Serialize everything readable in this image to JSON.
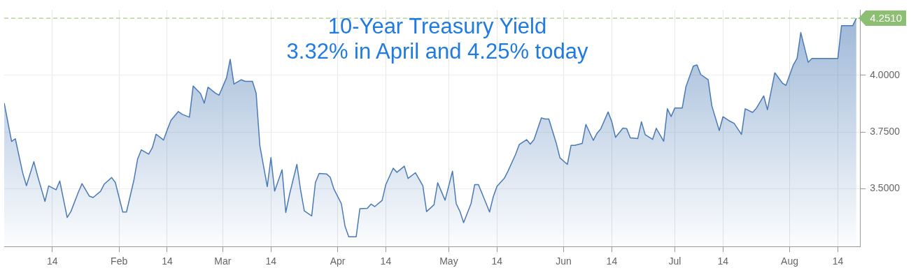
{
  "chart_data": {
    "type": "area",
    "title": "10-Year Treasury Yield",
    "subtitle": "3.32% in April and 4.25% today",
    "x": [
      "--01-01",
      "--01-03",
      "--01-04",
      "--01-06",
      "--01-07",
      "--01-09",
      "--01-10",
      "--01-12",
      "--01-13",
      "--01-15",
      "--01-16",
      "--01-18",
      "--01-19",
      "--01-21",
      "--01-22",
      "--01-24",
      "--01-25",
      "--01-27",
      "--01-28",
      "--01-30",
      "--01-31",
      "--02-02",
      "--02-03",
      "--02-05",
      "--02-06",
      "--02-07",
      "--02-09",
      "--02-10",
      "--02-11",
      "--02-13",
      "--02-14",
      "--02-15",
      "--02-17",
      "--02-18",
      "--02-20",
      "--02-21",
      "--02-23",
      "--02-24",
      "--02-25",
      "--02-27",
      "--02-28",
      "--03-02",
      "--03-03",
      "--03-04",
      "--03-06",
      "--03-07",
      "--03-09",
      "--03-10",
      "--03-11",
      "--03-13",
      "--03-14",
      "--03-15",
      "--03-17",
      "--03-18",
      "--03-19",
      "--03-21",
      "--03-22",
      "--03-23",
      "--03-25",
      "--03-26",
      "--03-27",
      "--03-29",
      "--03-30",
      "--03-31",
      "--04-02",
      "--04-03",
      "--04-04",
      "--04-06",
      "--04-07",
      "--04-09",
      "--04-10",
      "--04-11",
      "--04-13",
      "--04-14",
      "--04-16",
      "--04-17",
      "--04-19",
      "--04-20",
      "--04-22",
      "--04-24",
      "--04-25",
      "--04-27",
      "--04-28",
      "--04-30",
      "--05-02",
      "--05-03",
      "--05-04",
      "--05-05",
      "--05-07",
      "--05-08",
      "--05-09",
      "--05-11",
      "--05-12",
      "--05-13",
      "--05-14",
      "--05-16",
      "--05-17",
      "--05-19",
      "--05-20",
      "--05-22",
      "--05-23",
      "--05-24",
      "--05-26",
      "--05-27",
      "--05-28",
      "--05-30",
      "--05-31",
      "--06-02",
      "--06-03",
      "--06-04",
      "--06-06",
      "--06-07",
      "--06-09",
      "--06-10",
      "--06-11",
      "--06-13",
      "--06-14",
      "--06-15",
      "--06-17",
      "--06-18",
      "--06-19",
      "--06-21",
      "--06-22",
      "--06-23",
      "--06-25",
      "--06-26",
      "--06-28",
      "--06-29",
      "--06-30",
      "--07-01",
      "--07-03",
      "--07-04",
      "--07-06",
      "--07-07",
      "--07-08",
      "--07-10",
      "--07-11",
      "--07-13",
      "--07-14",
      "--07-16",
      "--07-17",
      "--07-19",
      "--07-20",
      "--07-22",
      "--07-23",
      "--07-25",
      "--07-26",
      "--07-28",
      "--07-30",
      "--07-31",
      "--08-02",
      "--08-03",
      "--08-04",
      "--08-06",
      "--08-07",
      "--08-14",
      "--08-15",
      "--08-18",
      "--08-19"
    ],
    "series": [
      {
        "color": "#4a7ab5",
        "values": [
          3.877,
          3.708,
          3.72,
          3.569,
          3.513,
          3.619,
          3.557,
          3.444,
          3.512,
          3.495,
          3.534,
          3.373,
          3.399,
          3.484,
          3.522,
          3.467,
          3.461,
          3.488,
          3.52,
          3.549,
          3.527,
          3.397,
          3.397,
          3.537,
          3.63,
          3.671,
          3.652,
          3.681,
          3.74,
          3.714,
          3.759,
          3.801,
          3.84,
          3.828,
          3.815,
          3.952,
          3.919,
          3.877,
          3.947,
          3.921,
          3.912,
          3.988,
          4.07,
          3.961,
          3.98,
          3.973,
          3.973,
          3.921,
          3.69,
          3.509,
          3.637,
          3.489,
          3.583,
          3.395,
          3.474,
          3.607,
          3.494,
          3.402,
          3.38,
          3.527,
          3.567,
          3.565,
          3.55,
          3.498,
          3.434,
          3.334,
          3.288,
          3.288,
          3.412,
          3.413,
          3.432,
          3.421,
          3.448,
          3.518,
          3.59,
          3.572,
          3.599,
          3.545,
          3.57,
          3.513,
          3.399,
          3.429,
          3.526,
          3.449,
          3.577,
          3.434,
          3.4,
          3.35,
          3.434,
          3.518,
          3.518,
          3.438,
          3.397,
          3.464,
          3.51,
          3.546,
          3.578,
          3.65,
          3.694,
          3.716,
          3.696,
          3.716,
          3.812,
          3.807,
          3.807,
          3.701,
          3.636,
          3.607,
          3.691,
          3.691,
          3.699,
          3.783,
          3.713,
          3.744,
          3.763,
          3.838,
          3.795,
          3.726,
          3.767,
          3.765,
          3.724,
          3.721,
          3.795,
          3.738,
          3.717,
          3.766,
          3.709,
          3.852,
          3.818,
          3.855,
          3.855,
          3.949,
          4.04,
          4.045,
          4.003,
          3.98,
          3.865,
          3.756,
          3.817,
          3.796,
          3.788,
          3.739,
          3.852,
          3.836,
          3.854,
          3.909,
          3.848,
          4.011,
          3.966,
          3.955,
          4.046,
          4.074,
          4.188,
          4.057,
          4.074,
          4.074,
          4.218,
          4.218,
          4.251
        ]
      }
    ],
    "xlim": [
      "--01-01",
      "--08-20"
    ],
    "xticks": [
      {
        "value": "--01-14",
        "label": "14"
      },
      {
        "value": "--02-01",
        "label": "Feb"
      },
      {
        "value": "--02-14",
        "label": "14"
      },
      {
        "value": "--03-01",
        "label": "Mar"
      },
      {
        "value": "--03-14",
        "label": "14"
      },
      {
        "value": "--04-01",
        "label": "Apr"
      },
      {
        "value": "--04-14",
        "label": "14"
      },
      {
        "value": "--05-01",
        "label": "May"
      },
      {
        "value": "--05-14",
        "label": "14"
      },
      {
        "value": "--06-01",
        "label": "Jun"
      },
      {
        "value": "--06-14",
        "label": "14"
      },
      {
        "value": "--07-01",
        "label": "Jul"
      },
      {
        "value": "--07-14",
        "label": "14"
      },
      {
        "value": "--08-01",
        "label": "Aug"
      },
      {
        "value": "--08-14",
        "label": "14"
      }
    ],
    "ylim": [
      3.245,
      4.287
    ],
    "yticks": [
      {
        "value": 3.5,
        "label": "3.5000"
      },
      {
        "value": 3.75,
        "label": "3.7500"
      },
      {
        "value": 4,
        "label": "4.0000"
      }
    ],
    "ref_lines": [
      {
        "axis": "y",
        "value": 4.251,
        "label": "4.2510",
        "color": "#8dbf72",
        "line_style": "dashed"
      }
    ],
    "grid": true,
    "legend": false,
    "marker": "none",
    "line_style": "solid"
  }
}
